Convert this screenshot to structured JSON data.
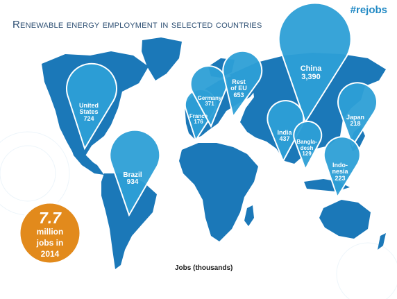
{
  "header": {
    "hashtag": "#rejobs",
    "title": "Renewable energy employment in selected countries"
  },
  "map": {
    "unit_label": "Jobs (thousands)",
    "colors": {
      "land": "#1b78b8",
      "pin": "#2d9fd6",
      "pin_border": "#ffffff",
      "badge": "#e28a1c",
      "accent_text": "#2089c4",
      "title_text": "#2c4e72"
    },
    "markers": [
      {
        "name_lines": [
          "United",
          "States"
        ],
        "value": "724"
      },
      {
        "name_lines": [
          "Brazil"
        ],
        "value": "934"
      },
      {
        "name_lines": [
          "France"
        ],
        "value": "176"
      },
      {
        "name_lines": [
          "Germany"
        ],
        "value": "371"
      },
      {
        "name_lines": [
          "Rest",
          "of EU"
        ],
        "value": "653"
      },
      {
        "name_lines": [
          "China"
        ],
        "value": "3,390"
      },
      {
        "name_lines": [
          "India"
        ],
        "value": "437"
      },
      {
        "name_lines": [
          "Bangla-",
          "desh"
        ],
        "value": "129"
      },
      {
        "name_lines": [
          "Japan"
        ],
        "value": "218"
      },
      {
        "name_lines": [
          "Indo-",
          "nesia"
        ],
        "value": "223"
      }
    ],
    "total_badge": {
      "big": "7.7",
      "lines": [
        "million",
        "jobs in",
        "2014"
      ]
    }
  }
}
